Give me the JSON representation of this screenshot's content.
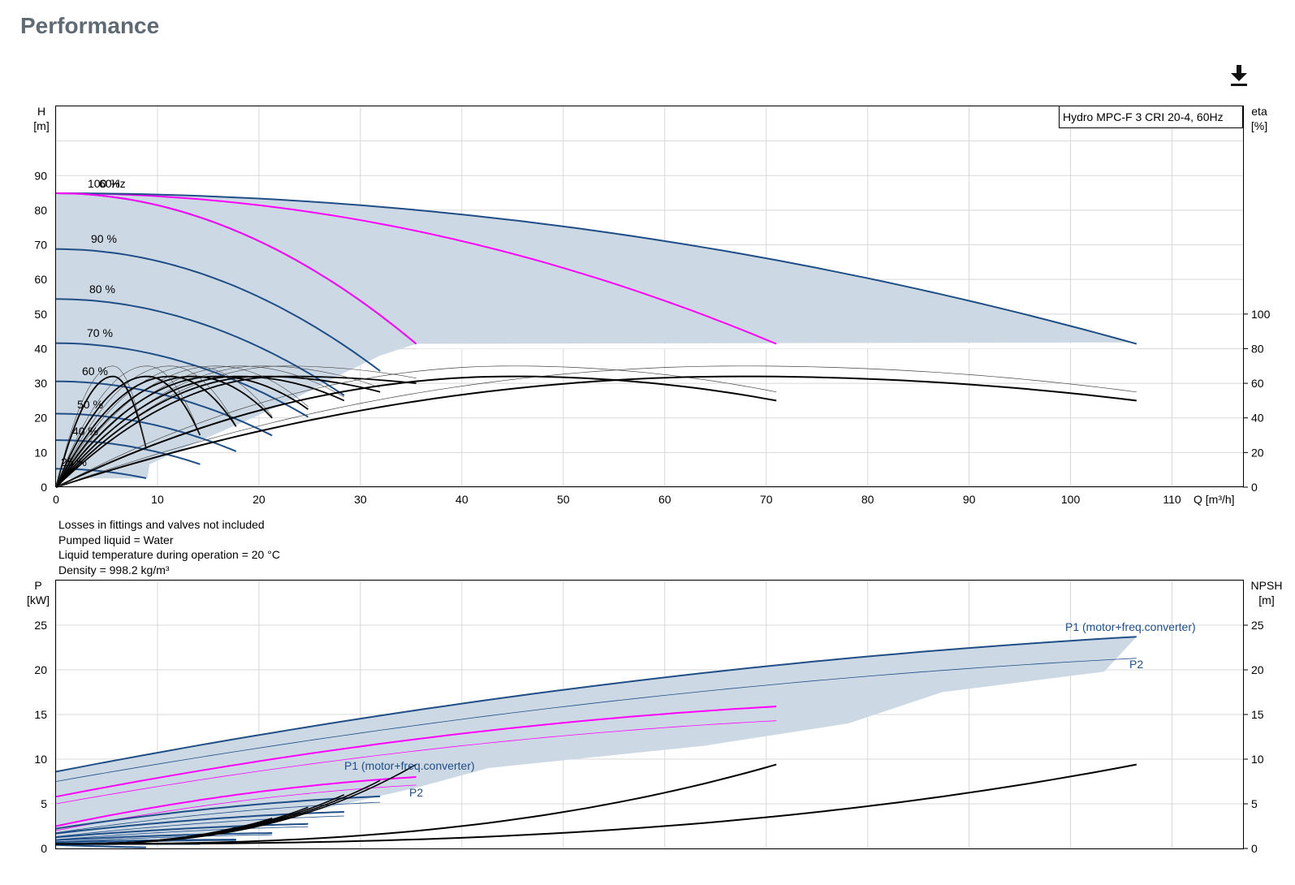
{
  "page": {
    "title": "Performance",
    "download_icon": "download-icon"
  },
  "colors": {
    "main_curve": "#1f4e86",
    "accent_curve": "#ff00ff",
    "area_fill": "#ccd9e5",
    "efficiency": "#000000",
    "grid": "#d8d8d8"
  },
  "notes": [
    "Losses in fittings and valves not included",
    "Pumped liquid = Water",
    "Liquid temperature during operation = 20 °C",
    "Density = 998.2 kg/m³"
  ],
  "chart_data": [
    {
      "type": "line",
      "legend_box": "Hydro MPC-F 3 CRI 20-4, 60Hz",
      "xlabel": "Q [m³/h]",
      "ylabel": [
        "H",
        "[m]"
      ],
      "ylabel_right": [
        "eta",
        "[%]"
      ],
      "xlim": [
        0,
        117
      ],
      "ylim": [
        0,
        110
      ],
      "ylim_right": [
        0,
        100
      ],
      "x_ticks": [
        0,
        10,
        20,
        30,
        40,
        50,
        60,
        70,
        80,
        90,
        100,
        110
      ],
      "y_ticks": [
        0,
        10,
        20,
        30,
        40,
        50,
        60,
        70,
        80,
        90
      ],
      "y_ticks_right": [
        0,
        20,
        40,
        60,
        80,
        100
      ],
      "grid": true,
      "speed_labels": [
        "100 %",
        "60Hz",
        "90 %",
        "80 %",
        "70 %",
        "60 %",
        "50 %",
        "40 %",
        "25 %"
      ],
      "speeds": [
        1.0,
        0.9,
        0.8,
        0.7,
        0.6,
        0.5,
        0.4,
        0.25
      ],
      "one_pump_end_q": 35.5,
      "two_pump_end_q": 71,
      "three_pump_end_q": 106.5,
      "shutoff_head": 84.9,
      "end_head": 41.4,
      "eta_peak": 64,
      "eta_end": 50,
      "eta_thin_peak": 70,
      "eta_thin_end": 55,
      "eta_peak_q": 22.5,
      "operating_band_min_head": 41.4,
      "series": [
        {
          "name": "",
          "color": "blue",
          "x": [
            0,
            5,
            10,
            15,
            20,
            25,
            30,
            35.5
          ],
          "y": [
            84.9,
            84.4,
            82.7,
            79.6,
            74.7,
            67.5,
            57.4,
            41.4
          ]
        },
        {
          "name": "",
          "color": "magenta",
          "x": [
            0,
            10,
            20,
            30,
            40,
            50,
            60,
            71
          ],
          "y": [
            84.9,
            84.4,
            82.7,
            79.6,
            74.7,
            67.5,
            57.4,
            41.4
          ]
        },
        {
          "name": "",
          "color": "blue",
          "x": [
            0,
            15,
            30,
            45,
            60,
            75,
            90,
            106.5
          ],
          "y": [
            84.9,
            84.4,
            82.7,
            79.6,
            74.7,
            67.5,
            57.4,
            41.4
          ]
        }
      ]
    },
    {
      "type": "line",
      "ylabel": [
        "P",
        "[kW]"
      ],
      "ylabel_right": [
        "NPSH",
        "[m]"
      ],
      "xlim": [
        0,
        117
      ],
      "ylim": [
        0,
        30
      ],
      "y_ticks": [
        0,
        5,
        10,
        15,
        20,
        25
      ],
      "grid": true,
      "one_pump": {
        "p1_start": 2.5,
        "p1_end": 8.0,
        "p2_start": 2.0,
        "p2_end": 7.1
      },
      "two_pump": {
        "p1_start": 5.8,
        "p1_end": 15.9,
        "p2_start": 5.0,
        "p2_end": 14.3
      },
      "three_pump": {
        "p1_start": 8.6,
        "p1_end": 23.7,
        "p2_start": 7.5,
        "p2_end": 21.3
      },
      "npsh": {
        "start": 0.5,
        "end": 9.4
      },
      "series_labels": [
        {
          "name": "P1 (motor+freq.converter)",
          "group": "three"
        },
        {
          "name": "P2",
          "group": "three"
        },
        {
          "name": "P1 (motor+freq.converter)",
          "group": "one"
        },
        {
          "name": "P2",
          "group": "one"
        }
      ]
    }
  ]
}
